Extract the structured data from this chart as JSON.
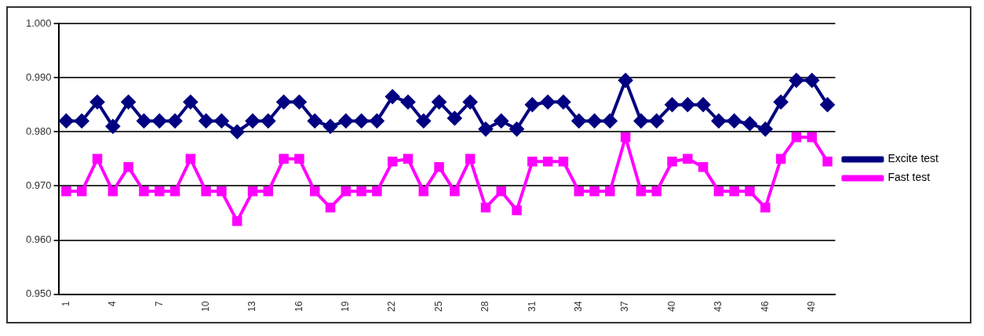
{
  "chart_data": {
    "type": "line",
    "categories": [
      "1",
      null,
      null,
      "4",
      null,
      null,
      "7",
      null,
      null,
      "10",
      null,
      null,
      "13",
      null,
      null,
      "16",
      null,
      null,
      "19",
      null,
      null,
      "22",
      null,
      null,
      "25",
      null,
      null,
      "28",
      null,
      null,
      "31",
      null,
      null,
      "34",
      null,
      null,
      "37",
      null,
      null,
      "40",
      null,
      null,
      "43",
      null,
      null,
      "46",
      null,
      null,
      "49",
      null
    ],
    "series": [
      {
        "name": "Excite test",
        "color": "#000080",
        "marker": "diamond",
        "values": [
          0.982,
          0.982,
          0.9855,
          0.981,
          0.9855,
          0.982,
          0.982,
          0.982,
          0.9855,
          0.982,
          0.982,
          0.98,
          0.982,
          0.982,
          0.9855,
          0.9855,
          0.982,
          0.981,
          0.982,
          0.982,
          0.982,
          0.9865,
          0.9855,
          0.982,
          0.9855,
          0.9825,
          0.9855,
          0.9805,
          0.982,
          0.9805,
          0.985,
          0.9855,
          0.9855,
          0.982,
          0.982,
          0.982,
          0.9895,
          0.982,
          0.982,
          0.985,
          0.985,
          0.985,
          0.982,
          0.982,
          0.9815,
          0.9805,
          0.9855,
          0.9895,
          0.9895,
          0.985
        ]
      },
      {
        "name": "Fast test",
        "color": "#ff00ff",
        "marker": "square",
        "values": [
          0.969,
          0.969,
          0.975,
          0.969,
          0.9735,
          0.969,
          0.969,
          0.969,
          0.975,
          0.969,
          0.969,
          0.9635,
          0.969,
          0.969,
          0.975,
          0.975,
          0.969,
          0.966,
          0.969,
          0.969,
          0.969,
          0.9745,
          0.975,
          0.969,
          0.9735,
          0.969,
          0.975,
          0.966,
          0.969,
          0.9655,
          0.9745,
          0.9745,
          0.9745,
          0.969,
          0.969,
          0.969,
          0.979,
          0.969,
          0.969,
          0.9745,
          0.975,
          0.9735,
          0.969,
          0.969,
          0.969,
          0.966,
          0.975,
          0.979,
          0.979,
          0.9745
        ]
      }
    ],
    "ylim": [
      0.95,
      1.0
    ],
    "yticks": [
      {
        "value": 0.95,
        "label": "0.950"
      },
      {
        "value": 0.96,
        "label": "0.960"
      },
      {
        "value": 0.97,
        "label": "0.970"
      },
      {
        "value": 0.98,
        "label": "0.980"
      },
      {
        "value": 0.99,
        "label": "0.990"
      },
      {
        "value": 1.0,
        "label": "1.000"
      }
    ],
    "grid": "y",
    "legend": "right",
    "line_style": "solid"
  }
}
